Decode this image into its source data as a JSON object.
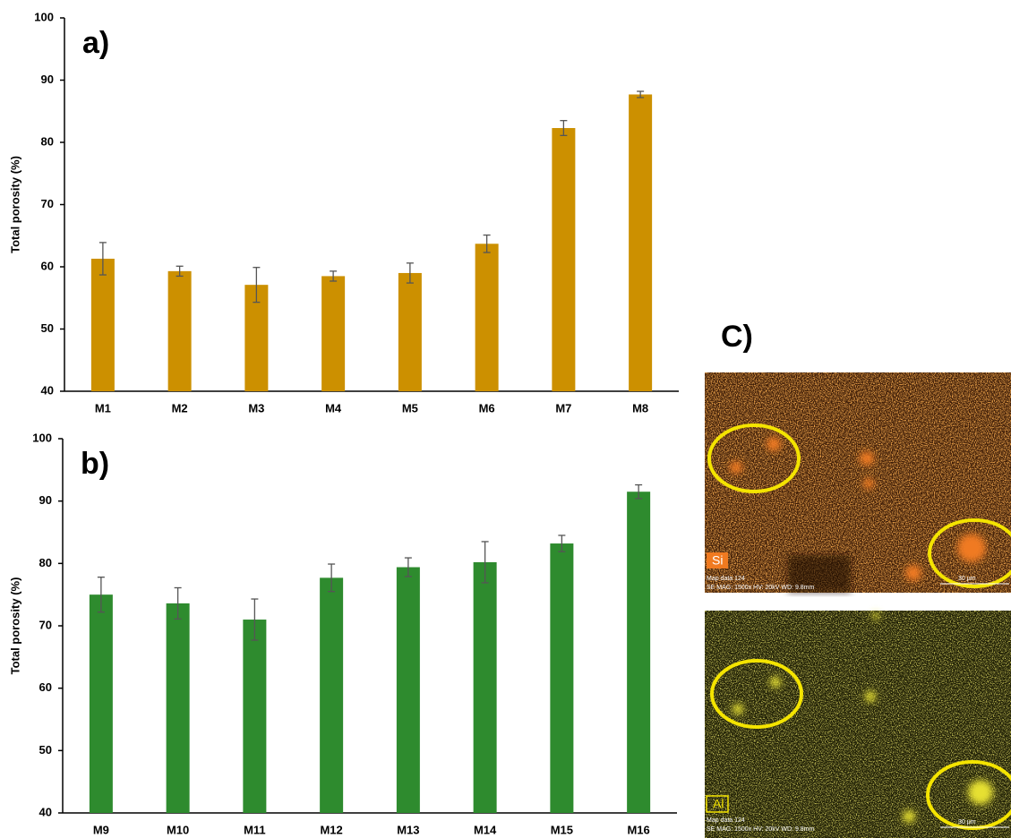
{
  "chart_data": [
    {
      "type": "bar",
      "panel_label": "a)",
      "y_label": "Total porosity (%)",
      "categories": [
        "M1",
        "M2",
        "M3",
        "M4",
        "M5",
        "M6",
        "M7",
        "M8"
      ],
      "values": [
        61.3,
        59.3,
        57.1,
        58.5,
        59.0,
        63.7,
        82.3,
        87.7
      ],
      "errors": [
        2.6,
        0.8,
        2.8,
        0.8,
        1.6,
        1.4,
        1.2,
        0.5
      ],
      "color": "#cc9000",
      "ylim": [
        40,
        100
      ],
      "yticks": [
        40,
        50,
        60,
        70,
        80,
        90,
        100
      ]
    },
    {
      "type": "bar",
      "panel_label": "b)",
      "y_label": "Total porosity (%)",
      "categories": [
        "M9",
        "M10",
        "M11",
        "M12",
        "M13",
        "M14",
        "M15",
        "M16"
      ],
      "values": [
        75.0,
        73.6,
        71.0,
        77.7,
        79.4,
        80.2,
        83.2,
        91.5
      ],
      "errors": [
        2.8,
        2.5,
        3.3,
        2.2,
        1.5,
        3.3,
        1.3,
        1.1
      ],
      "color": "#2e8b2e",
      "ylim": [
        40,
        100
      ],
      "yticks": [
        40,
        50,
        60,
        70,
        80,
        90,
        100
      ]
    }
  ],
  "panel_c": {
    "label": "C)",
    "maps": [
      {
        "element": "Si",
        "caption": "Map data 124",
        "settings": "SE MAG: 1500x HV: 20kV WD: 9.8mm",
        "scale": "30 µm"
      },
      {
        "element": "Al",
        "caption": "Map data 124",
        "settings": "SE MAG: 1500x HV: 20kV WD: 9.8mm",
        "scale": "30 µm"
      }
    ]
  }
}
